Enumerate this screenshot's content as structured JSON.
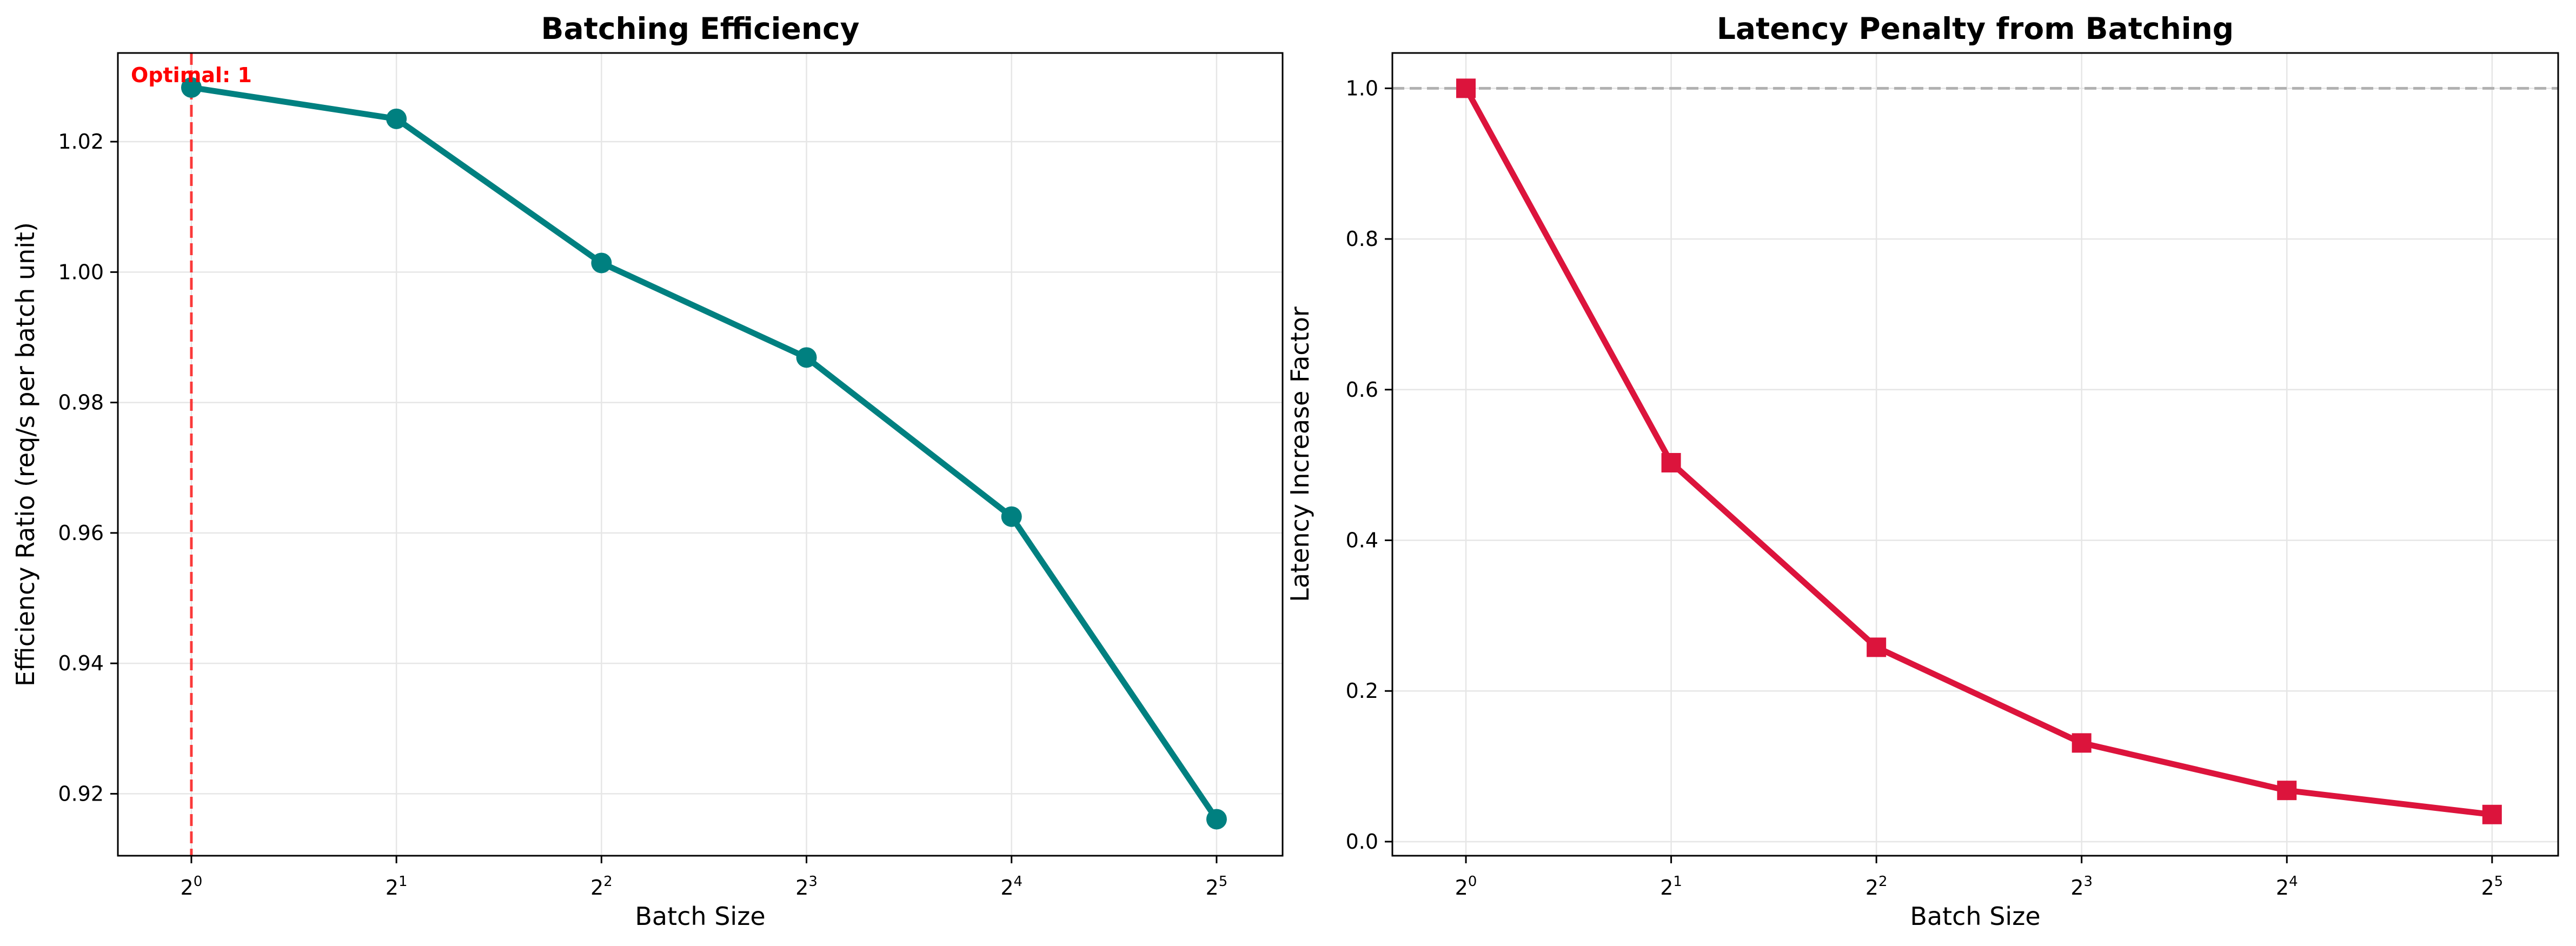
{
  "chart_data": [
    {
      "type": "line",
      "title": "Batching Efficiency",
      "xlabel": "Batch Size",
      "ylabel": "Efficiency Ratio (req/s per batch unit)",
      "x_scale": "log2",
      "x": [
        1,
        2,
        4,
        8,
        16,
        32
      ],
      "x_tick_labels": [
        {
          "base": "2",
          "exp": "0"
        },
        {
          "base": "2",
          "exp": "1"
        },
        {
          "base": "2",
          "exp": "2"
        },
        {
          "base": "2",
          "exp": "3"
        },
        {
          "base": "2",
          "exp": "4"
        },
        {
          "base": "2",
          "exp": "5"
        }
      ],
      "xlim": [
        0.78,
        40
      ],
      "ylim": [
        0.9105,
        1.0336
      ],
      "yticks": [
        0.92,
        0.94,
        0.96,
        0.98,
        1.0,
        1.02
      ],
      "ytick_labels": [
        "0.92",
        "0.94",
        "0.96",
        "0.98",
        "1.00",
        "1.02"
      ],
      "series": [
        {
          "values": [
            1.0283,
            1.0235,
            1.0014,
            0.9869,
            0.9625,
            0.9161
          ],
          "color": "#008080",
          "marker": "circle"
        }
      ],
      "vline": {
        "x": 1,
        "color": "#ff0000",
        "style": "dashed"
      },
      "annotation": {
        "text": "Optimal: 1",
        "color": "#ff0000"
      },
      "grid": true
    },
    {
      "type": "line",
      "title": "Latency Penalty from Batching",
      "xlabel": "Batch Size",
      "ylabel": "Latency Increase Factor",
      "x_scale": "log2",
      "x": [
        1,
        2,
        4,
        8,
        16,
        32
      ],
      "x_tick_labels": [
        {
          "base": "2",
          "exp": "0"
        },
        {
          "base": "2",
          "exp": "1"
        },
        {
          "base": "2",
          "exp": "2"
        },
        {
          "base": "2",
          "exp": "3"
        },
        {
          "base": "2",
          "exp": "4"
        },
        {
          "base": "2",
          "exp": "5"
        }
      ],
      "xlim": [
        0.78,
        40
      ],
      "ylim": [
        -0.0187,
        1.0469
      ],
      "yticks": [
        0.0,
        0.2,
        0.4,
        0.6,
        0.8,
        1.0
      ],
      "ytick_labels": [
        "0.0",
        "0.2",
        "0.4",
        "0.6",
        "0.8",
        "1.0"
      ],
      "series": [
        {
          "values": [
            1.0,
            0.503,
            0.258,
            0.131,
            0.068,
            0.036
          ],
          "color": "#dc143c",
          "marker": "square"
        }
      ],
      "hline": {
        "y": 1.0,
        "color": "#b0b0b0",
        "style": "dashed"
      },
      "grid": true
    }
  ]
}
